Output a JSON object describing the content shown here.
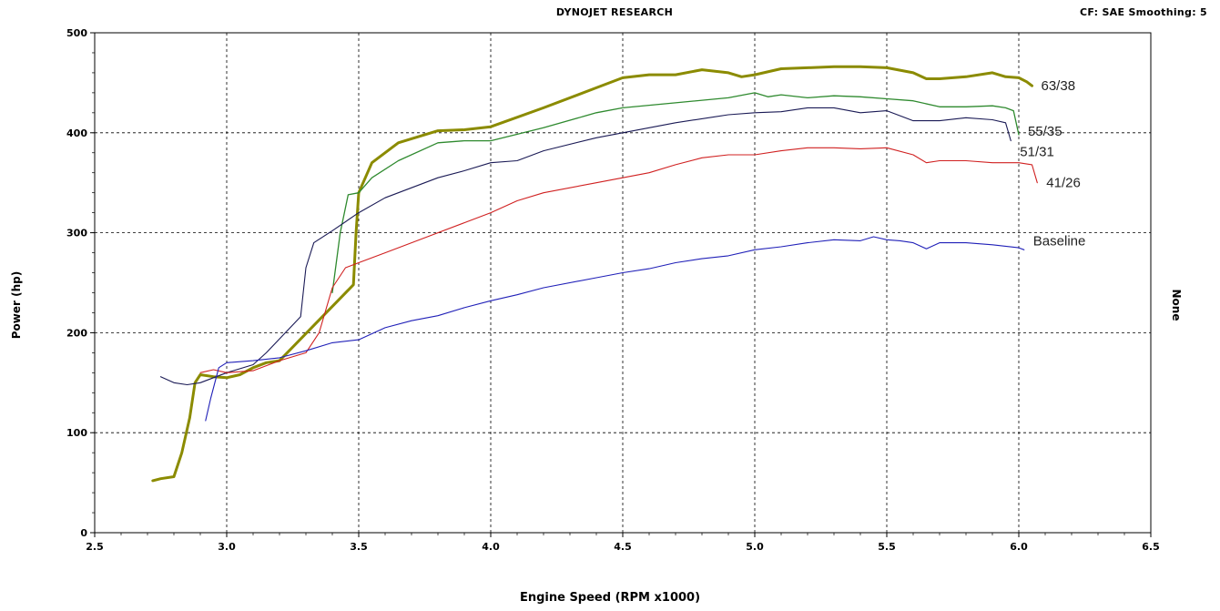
{
  "header": {
    "title": "DYNOJET RESEARCH",
    "correction": "CF: SAE  Smoothing: 5"
  },
  "chart_data": {
    "type": "line",
    "title": "DYNOJET RESEARCH",
    "xlabel": "Engine Speed (RPM x1000)",
    "ylabel": "Power (hp)",
    "right_label": "None",
    "xlim": [
      2.5,
      6.5
    ],
    "ylim": [
      0,
      500
    ],
    "xticks": [
      "2.5",
      "3.0",
      "3.5",
      "4.0",
      "4.5",
      "5.0",
      "5.5",
      "6.0",
      "6.5"
    ],
    "yticks": [
      "0",
      "100",
      "200",
      "300",
      "400",
      "500"
    ],
    "grid": true,
    "series": [
      {
        "name": "63/38",
        "color": "#8b8b00",
        "width": 3,
        "x": [
          2.72,
          2.75,
          2.8,
          2.83,
          2.86,
          2.88,
          2.9,
          2.95,
          3.0,
          3.05,
          3.1,
          3.15,
          3.2,
          3.48,
          3.49,
          3.5,
          3.55,
          3.65,
          3.8,
          3.9,
          4.0,
          4.2,
          4.4,
          4.5,
          4.6,
          4.7,
          4.8,
          4.9,
          4.95,
          5.0,
          5.1,
          5.2,
          5.3,
          5.4,
          5.5,
          5.6,
          5.65,
          5.7,
          5.8,
          5.9,
          5.95,
          6.0,
          6.03,
          6.05
        ],
        "y": [
          52,
          54,
          56,
          80,
          115,
          150,
          158,
          156,
          155,
          158,
          165,
          170,
          172,
          248,
          300,
          340,
          370,
          390,
          402,
          403,
          406,
          425,
          445,
          455,
          458,
          458,
          463,
          460,
          456,
          458,
          464,
          465,
          466,
          466,
          465,
          460,
          454,
          454,
          456,
          460,
          456,
          455,
          451,
          447
        ]
      },
      {
        "name": "55/35",
        "color": "#2f8a2f",
        "width": 1.3,
        "x": [
          3.4,
          3.43,
          3.46,
          3.5,
          3.55,
          3.65,
          3.8,
          3.9,
          4.0,
          4.2,
          4.4,
          4.5,
          4.7,
          4.9,
          5.0,
          5.05,
          5.1,
          5.2,
          5.3,
          5.4,
          5.5,
          5.6,
          5.7,
          5.8,
          5.9,
          5.95,
          5.98,
          6.0
        ],
        "y": [
          240,
          300,
          338,
          340,
          355,
          372,
          390,
          392,
          392,
          405,
          420,
          425,
          430,
          435,
          440,
          436,
          438,
          435,
          437,
          436,
          434,
          432,
          426,
          426,
          427,
          425,
          422,
          398
        ]
      },
      {
        "name": "51/31",
        "color": "#1a1a55",
        "width": 1.1,
        "x": [
          2.75,
          2.8,
          2.85,
          2.9,
          2.95,
          3.0,
          3.1,
          3.15,
          3.28,
          3.3,
          3.33,
          3.4,
          3.5,
          3.6,
          3.7,
          3.8,
          3.9,
          4.0,
          4.1,
          4.2,
          4.4,
          4.5,
          4.7,
          4.9,
          5.0,
          5.1,
          5.2,
          5.3,
          5.4,
          5.5,
          5.6,
          5.7,
          5.8,
          5.9,
          5.95,
          5.97
        ],
        "y": [
          156,
          150,
          148,
          150,
          155,
          160,
          168,
          180,
          216,
          265,
          290,
          302,
          320,
          335,
          345,
          355,
          362,
          370,
          372,
          382,
          395,
          400,
          410,
          418,
          420,
          421,
          425,
          425,
          420,
          422,
          412,
          412,
          415,
          413,
          410,
          392
        ]
      },
      {
        "name": "41/26",
        "color": "#d02020",
        "width": 1.1,
        "x": [
          2.9,
          2.95,
          3.0,
          3.1,
          3.2,
          3.3,
          3.35,
          3.4,
          3.45,
          3.5,
          3.6,
          3.7,
          3.8,
          3.9,
          4.0,
          4.1,
          4.2,
          4.4,
          4.5,
          4.6,
          4.7,
          4.8,
          4.9,
          5.0,
          5.1,
          5.2,
          5.3,
          5.4,
          5.5,
          5.6,
          5.65,
          5.7,
          5.8,
          5.9,
          6.0,
          6.05,
          6.07
        ],
        "y": [
          160,
          163,
          160,
          162,
          172,
          180,
          200,
          245,
          265,
          270,
          280,
          290,
          300,
          310,
          320,
          332,
          340,
          350,
          355,
          360,
          368,
          375,
          378,
          378,
          382,
          385,
          385,
          384,
          385,
          378,
          370,
          372,
          372,
          370,
          370,
          368,
          350
        ]
      },
      {
        "name": "Baseline",
        "color": "#2020b8",
        "width": 1.1,
        "x": [
          2.92,
          2.94,
          2.97,
          3.0,
          3.1,
          3.2,
          3.3,
          3.4,
          3.5,
          3.6,
          3.7,
          3.8,
          3.9,
          4.0,
          4.1,
          4.2,
          4.4,
          4.5,
          4.6,
          4.7,
          4.8,
          4.9,
          5.0,
          5.1,
          5.2,
          5.3,
          5.4,
          5.45,
          5.5,
          5.55,
          5.6,
          5.65,
          5.7,
          5.8,
          5.9,
          6.0,
          6.02
        ],
        "y": [
          112,
          135,
          165,
          170,
          172,
          175,
          182,
          190,
          193,
          205,
          212,
          217,
          225,
          232,
          238,
          245,
          255,
          260,
          264,
          270,
          274,
          277,
          283,
          286,
          290,
          293,
          292,
          296,
          293,
          292,
          290,
          284,
          290,
          290,
          288,
          285,
          283
        ]
      }
    ]
  }
}
